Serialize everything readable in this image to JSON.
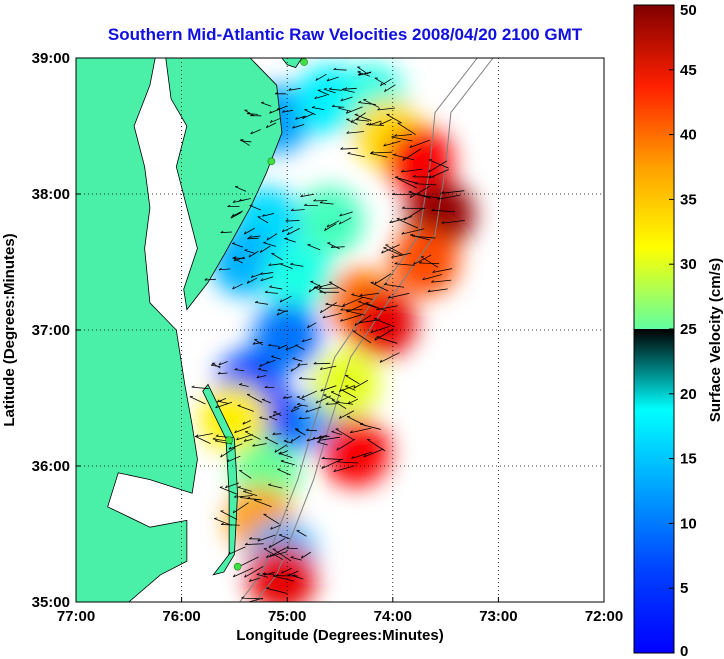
{
  "chart_data": {
    "type": "heatmap",
    "title": "Southern Mid-Atlantic Raw Velocities 2008/04/20 2100 GMT",
    "xlabel": "Longitude (Degrees:Minutes)",
    "ylabel": "Latitude (Degrees:Minutes)",
    "x_ticks": [
      "77:00",
      "76:00",
      "75:00",
      "74:00",
      "73:00",
      "72:00"
    ],
    "y_ticks": [
      "39:00",
      "38:00",
      "37:00",
      "36:00",
      "35:00"
    ],
    "xlim": [
      -77,
      -72
    ],
    "ylim": [
      35,
      39
    ],
    "grid": true,
    "colorbar": {
      "label": "Surface Velocity (cm/s)",
      "ticks": [
        "0",
        "5",
        "10",
        "15",
        "20",
        "25",
        "30",
        "35",
        "40",
        "45",
        "50"
      ],
      "range": [
        0,
        50
      ],
      "colormap": "jet"
    },
    "land_color": "#4af0a8",
    "coastline_color": "#000000",
    "isobath_color": "#808080",
    "vector_color": "#000000",
    "site_marker_color": "#40e040",
    "sites": [
      {
        "lon": -74.84,
        "lat": 38.97
      },
      {
        "lon": -75.15,
        "lat": 38.24
      },
      {
        "lon": -75.55,
        "lat": 36.19
      },
      {
        "lon": -75.47,
        "lat": 35.26
      }
    ],
    "velocity_regions": [
      {
        "lon": -75.1,
        "lat": 38.55,
        "speed": 14
      },
      {
        "lon": -74.6,
        "lat": 38.7,
        "speed": 18
      },
      {
        "lon": -74.2,
        "lat": 38.7,
        "speed": 20
      },
      {
        "lon": -74.05,
        "lat": 38.45,
        "speed": 33
      },
      {
        "lon": -73.75,
        "lat": 38.25,
        "speed": 44
      },
      {
        "lon": -73.55,
        "lat": 37.85,
        "speed": 49
      },
      {
        "lon": -73.7,
        "lat": 37.5,
        "speed": 40
      },
      {
        "lon": -74.6,
        "lat": 37.8,
        "speed": 22
      },
      {
        "lon": -75.2,
        "lat": 37.8,
        "speed": 17
      },
      {
        "lon": -75.4,
        "lat": 37.5,
        "speed": 15
      },
      {
        "lon": -74.9,
        "lat": 37.4,
        "speed": 20
      },
      {
        "lon": -74.3,
        "lat": 37.2,
        "speed": 38
      },
      {
        "lon": -74.1,
        "lat": 37.05,
        "speed": 45
      },
      {
        "lon": -75.0,
        "lat": 36.95,
        "speed": 12
      },
      {
        "lon": -75.35,
        "lat": 36.6,
        "speed": 10
      },
      {
        "lon": -75.1,
        "lat": 36.3,
        "speed": 8
      },
      {
        "lon": -74.6,
        "lat": 36.35,
        "speed": 14
      },
      {
        "lon": -74.35,
        "lat": 36.1,
        "speed": 44
      },
      {
        "lon": -74.45,
        "lat": 36.6,
        "speed": 30
      },
      {
        "lon": -75.5,
        "lat": 36.35,
        "speed": 32
      },
      {
        "lon": -75.2,
        "lat": 35.95,
        "speed": 24
      },
      {
        "lon": -75.25,
        "lat": 35.6,
        "speed": 36
      },
      {
        "lon": -75.05,
        "lat": 35.35,
        "speed": 15
      },
      {
        "lon": -75.05,
        "lat": 35.18,
        "speed": 45
      }
    ]
  }
}
